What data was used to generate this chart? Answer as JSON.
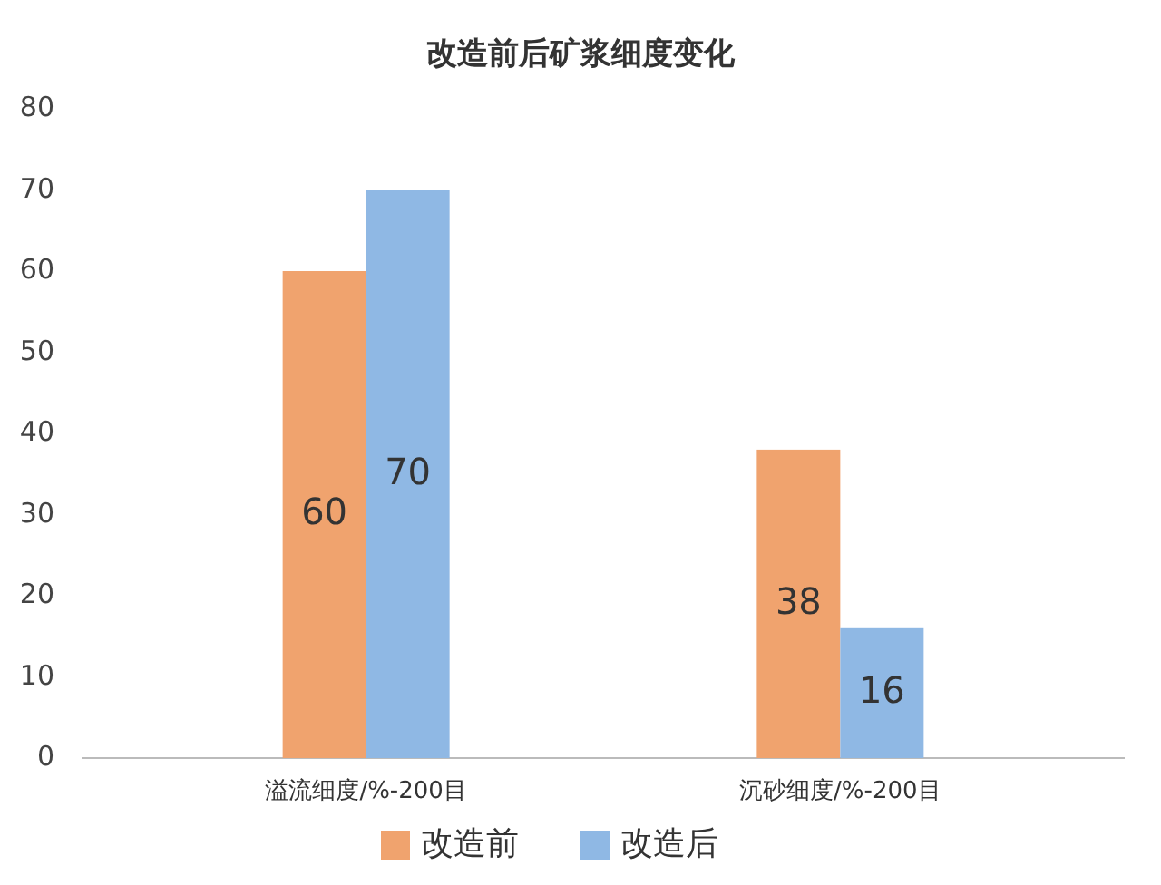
{
  "chart_data": {
    "type": "bar",
    "title": "改造前后矿浆细度变化",
    "categories": [
      "溢流细度/%-200目",
      "沉砂细度/%-200目"
    ],
    "series": [
      {
        "name": "改造前",
        "color": "#f0a36e",
        "values": [
          60,
          38
        ]
      },
      {
        "name": "改造后",
        "color": "#8fb8e4",
        "values": [
          70,
          16
        ]
      }
    ],
    "ylim": [
      0,
      80
    ],
    "yticks": [
      0,
      10,
      20,
      30,
      40,
      50,
      60,
      70,
      80
    ],
    "grid": false,
    "legend": "bottom",
    "data_labels": true
  }
}
